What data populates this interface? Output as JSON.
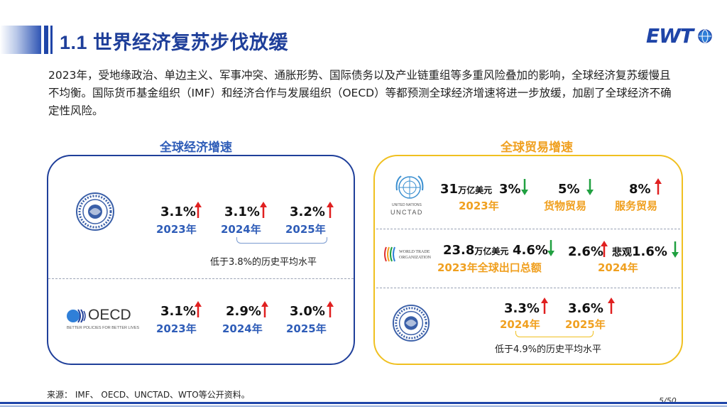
{
  "header": {
    "title": "1.1 世界经济复苏步伐放缓",
    "logo_text": "EWT"
  },
  "intro": "2023年，受地缘政治、单边主义、军事冲突、通胀形势、国际债务以及产业链重组等多重风险叠加的影响，全球经济复苏缓慢且不均衡。国际货币基金组织（IMF）和经济合作与发展组织（OECD）等都预测全球经济增速将进一步放缓，加剧了全球经济不确定性风险。",
  "left_panel": {
    "title": "全球经济增速",
    "imf": {
      "logo": "imf-seal",
      "values": [
        "3.1%",
        "3.1%",
        "3.2%"
      ],
      "years": [
        "2023年",
        "2024年",
        "2025年"
      ],
      "arrows": [
        "up",
        "up",
        "up"
      ],
      "note": "低于3.8%的历史平均水平"
    },
    "oecd": {
      "logo_text": "OECD",
      "logo_tagline": "BETTER POLICIES FOR BETTER LIVES",
      "values": [
        "3.1%",
        "2.9%",
        "3.0%"
      ],
      "years": [
        "2023年",
        "2024年",
        "2025年"
      ],
      "arrows": [
        "up",
        "up",
        "up"
      ]
    }
  },
  "right_panel": {
    "title": "全球贸易增速",
    "unctad": {
      "logo_text": "UNCTAD",
      "logo_small": "UNITED NATIONS",
      "amount": "31",
      "amount_unit": "万亿美元",
      "amount_pct": "3%",
      "amount_arrow": "down",
      "year": "2023年",
      "goods_value": "5%",
      "goods_arrow": "down",
      "goods_label": "货物贸易",
      "services_value": "8%",
      "services_arrow": "up",
      "services_label": "服务贸易"
    },
    "wto": {
      "logo_text": "WORLD TRADE ORGANIZATION",
      "amount": "23.8",
      "amount_unit": "万亿美元",
      "amount_pct": "4.6%",
      "amount_arrow": "down",
      "export_label": "2023年全球出口总额",
      "val_2024": "2.6%",
      "val_2024_arrow": "up",
      "pessimistic_label": "悲观",
      "pessimistic_value": "1.6%",
      "pessimistic_arrow": "down",
      "year_2024": "2024年"
    },
    "imf": {
      "logo": "imf-seal",
      "values": [
        "3.3%",
        "3.6%"
      ],
      "years": [
        "2024年",
        "2025年"
      ],
      "arrows": [
        "up",
        "up"
      ],
      "note": "低于4.9%的历史平均水平"
    }
  },
  "footer": {
    "source": "来源：  IMF、 OECD、UNCTAD、WTO等公开资料。",
    "page": "5/50"
  },
  "colors": {
    "brand_blue": "#1f3f9a",
    "accent_orange": "#f0a020",
    "panel_yellow": "#f0c020",
    "arrow_up": "#e02020",
    "arrow_down": "#20a040"
  }
}
